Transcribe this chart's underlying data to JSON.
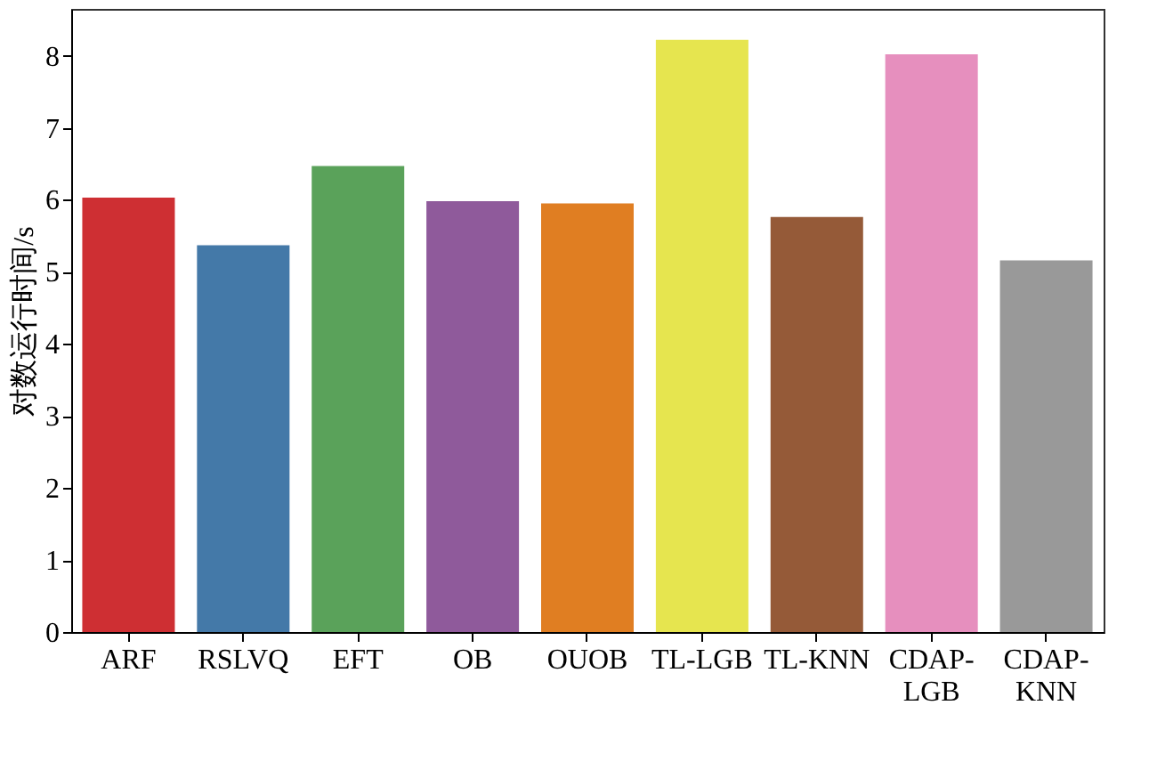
{
  "chart_data": {
    "type": "bar",
    "ylabel": "对数运行时间/s",
    "categories": [
      "ARF",
      "RSLVQ",
      "EFT",
      "OB",
      "OUOB",
      "TL-LGB",
      "TL-KNN",
      "CDAP-\nLGB",
      "CDAP-\nKNN"
    ],
    "values": [
      6.03,
      5.37,
      6.47,
      5.98,
      5.95,
      8.22,
      5.76,
      8.02,
      5.16
    ],
    "colors": [
      "#ce2f33",
      "#4479a8",
      "#5aa25a",
      "#8f5a9b",
      "#e07e22",
      "#e6e54f",
      "#955a38",
      "#e68fbe",
      "#999999"
    ],
    "ylim": [
      0,
      8.65
    ],
    "yticks": [
      0,
      1,
      2,
      3,
      4,
      5,
      6,
      7,
      8
    ],
    "grid": false
  }
}
